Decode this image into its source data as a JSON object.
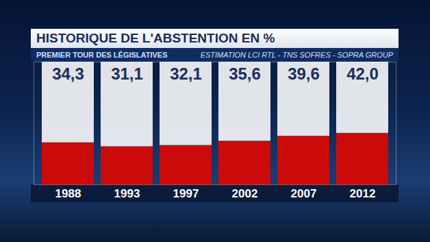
{
  "chart_data": {
    "type": "bar",
    "title": "HISTORIQUE DE L'ABSTENTION EN %",
    "subtitle": "PREMIER TOUR DES LÉGISLATIVES",
    "source": "ESTIMATION LCI RTL - TNS SOFRES - SOPRA GROUP",
    "categories": [
      "1988",
      "1993",
      "1997",
      "2002",
      "2007",
      "2012"
    ],
    "values": [
      34.3,
      31.1,
      32.1,
      35.6,
      39.6,
      42.0
    ],
    "value_labels": [
      "34,3",
      "31,1",
      "32,1",
      "35,6",
      "39,6",
      "42,0"
    ],
    "color": "#cc0a0a",
    "ylim": [
      0,
      100
    ],
    "data_labels": true,
    "tick_labels": "x",
    "grid": false
  }
}
